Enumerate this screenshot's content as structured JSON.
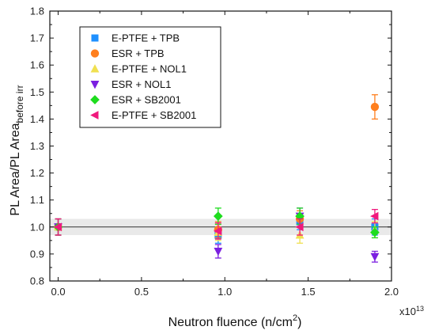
{
  "chart_data": {
    "type": "scatter",
    "xlabel": "Neutron fluence (n/cm",
    "xlabel_sup": "2",
    "xlabel_end": ")",
    "x_multiplier": "x10",
    "x_multiplier_exp": "13",
    "ylabel": "PL Area/PL Area",
    "ylabel_sub": "before irr",
    "xlim": [
      -0.05,
      2.0
    ],
    "ylim": [
      0.8,
      1.8
    ],
    "xticks": [
      0.0,
      0.5,
      1.0,
      1.5,
      2.0
    ],
    "xtick_labels": [
      "0.0",
      "0.5",
      "1.0",
      "1.5",
      "2.0"
    ],
    "yticks": [
      0.8,
      0.9,
      1.0,
      1.1,
      1.2,
      1.3,
      1.4,
      1.5,
      1.6,
      1.7,
      1.8
    ],
    "ytick_labels": [
      "0.8",
      "0.9",
      "1.0",
      "1.1",
      "1.2",
      "1.3",
      "1.4",
      "1.5",
      "1.6",
      "1.7",
      "1.8"
    ],
    "reference_line": 1.0,
    "reference_band": [
      0.97,
      1.03
    ],
    "legend_position": "top-left",
    "series": [
      {
        "name": "E-PTFE + TPB",
        "marker": "square",
        "color": "#1e90ff",
        "points": [
          {
            "x": 0.0,
            "y": 1.0,
            "err": 0.03
          },
          {
            "x": 0.96,
            "y": 0.97,
            "err": 0.03
          },
          {
            "x": 1.45,
            "y": 1.02,
            "err": 0.03
          },
          {
            "x": 1.9,
            "y": 1.0,
            "err": 0.03
          }
        ]
      },
      {
        "name": "ESR + TPB",
        "marker": "circle",
        "color": "#ff7f1e",
        "points": [
          {
            "x": 0.0,
            "y": 1.0,
            "err": 0.03
          },
          {
            "x": 0.96,
            "y": 0.99,
            "err": 0.03
          },
          {
            "x": 1.45,
            "y": 1.03,
            "err": 0.03
          },
          {
            "x": 1.9,
            "y": 1.445,
            "err": 0.045
          }
        ]
      },
      {
        "name": "E-PTFE + NOL1",
        "marker": "triangle-up",
        "color": "#f0e050",
        "points": [
          {
            "x": 0.0,
            "y": 1.0,
            "err": 0.03
          },
          {
            "x": 0.96,
            "y": 0.98,
            "err": 0.03
          },
          {
            "x": 1.45,
            "y": 0.97,
            "err": 0.03
          },
          {
            "x": 1.9,
            "y": 0.99,
            "err": 0.03
          }
        ]
      },
      {
        "name": "ESR + NOL1",
        "marker": "triangle-down",
        "color": "#7b1fe0",
        "points": [
          {
            "x": 0.0,
            "y": 1.0,
            "err": 0.03
          },
          {
            "x": 0.96,
            "y": 0.91,
            "err": 0.025
          },
          {
            "x": 1.45,
            "y": 1.04,
            "err": 0.03
          },
          {
            "x": 1.9,
            "y": 0.89,
            "err": 0.02
          }
        ]
      },
      {
        "name": "ESR + SB2001",
        "marker": "diamond",
        "color": "#1edc1e",
        "points": [
          {
            "x": 0.0,
            "y": 1.0,
            "err": 0.03
          },
          {
            "x": 0.96,
            "y": 1.04,
            "err": 0.03
          },
          {
            "x": 1.45,
            "y": 1.04,
            "err": 0.03
          },
          {
            "x": 1.9,
            "y": 0.98,
            "err": 0.02
          }
        ]
      },
      {
        "name": "E-PTFE + SB2001",
        "marker": "triangle-left",
        "color": "#f0197d",
        "points": [
          {
            "x": 0.0,
            "y": 1.0,
            "err": 0.03
          },
          {
            "x": 0.96,
            "y": 0.985,
            "err": 0.03
          },
          {
            "x": 1.45,
            "y": 1.0,
            "err": 0.03
          },
          {
            "x": 1.9,
            "y": 1.04,
            "err": 0.025
          }
        ]
      }
    ]
  }
}
